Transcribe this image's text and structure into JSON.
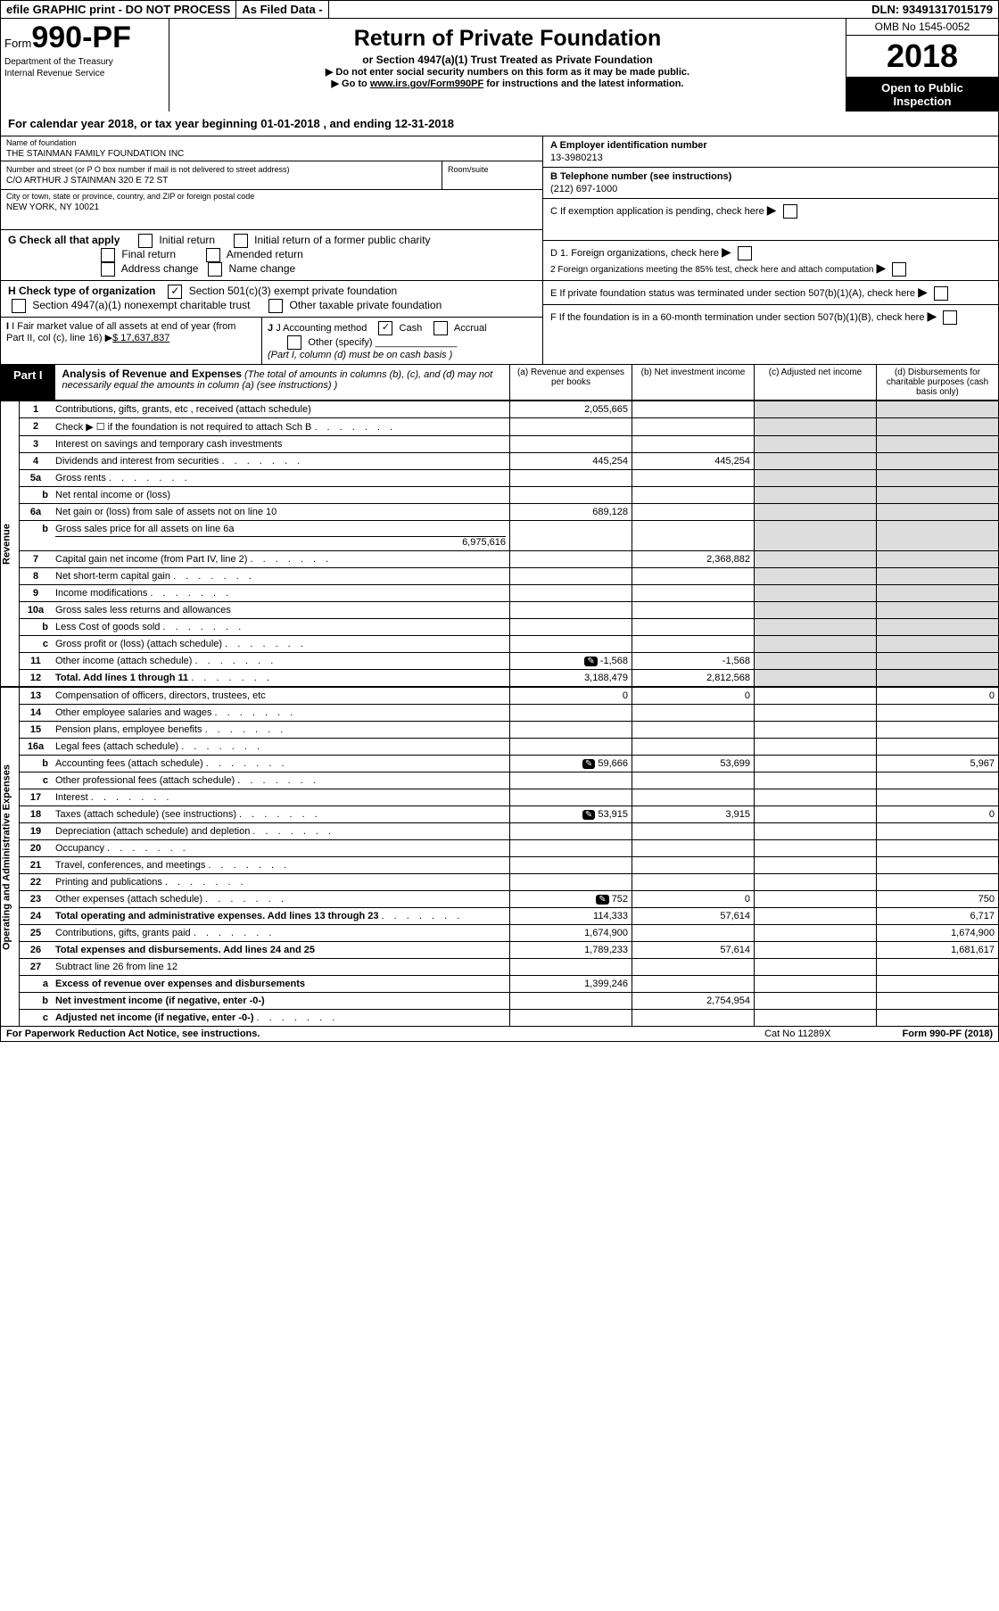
{
  "top_bar": {
    "efile": "efile GRAPHIC print - DO NOT PROCESS",
    "asfiled": "As Filed Data -",
    "dln": "DLN: 93491317015179"
  },
  "form": {
    "prefix": "Form",
    "number": "990-PF",
    "dept1": "Department of the Treasury",
    "dept2": "Internal Revenue Service"
  },
  "title": {
    "main": "Return of Private Foundation",
    "sub": "or Section 4947(a)(1) Trust Treated as Private Foundation",
    "instr1": "▶ Do not enter social security numbers on this form as it may be made public.",
    "instr2_pre": "▶ Go to ",
    "instr2_link": "www.irs.gov/Form990PF",
    "instr2_post": " for instructions and the latest information."
  },
  "year_box": {
    "omb": "OMB No  1545-0052",
    "year": "2018",
    "open1": "Open to Public",
    "open2": "Inspection"
  },
  "cal_year": "For calendar year 2018, or tax year beginning 01-01-2018              , and ending 12-31-2018",
  "name_label": "Name of foundation",
  "name_value": "THE STAINMAN FAMILY FOUNDATION INC",
  "addr_label": "Number and street (or P O  box number if mail is not delivered to street address)",
  "addr_value": "C/O ARTHUR J STAINMAN 320 E 72 ST",
  "room_label": "Room/suite",
  "city_label": "City or town, state or province, country, and ZIP or foreign postal code",
  "city_value": "NEW YORK, NY  10021",
  "ein_label": "A Employer identification number",
  "ein_value": "13-3980213",
  "phone_label": "B Telephone number (see instructions)",
  "phone_value": "(212) 697-1000",
  "c_label": "C  If exemption application is pending, check here",
  "d1_label": "D 1. Foreign organizations, check here",
  "d2_label": "2  Foreign organizations meeting the 85% test, check here and attach computation",
  "e_label": "E  If private foundation status was terminated under section 507(b)(1)(A), check here",
  "f_label": "F  If the foundation is in a 60-month termination under section 507(b)(1)(B), check here",
  "g_label": "G Check all that apply",
  "g_opts": [
    "Initial return",
    "Initial return of a former public charity",
    "Final return",
    "Amended return",
    "Address change",
    "Name change"
  ],
  "h_label": "H Check type of organization",
  "h_opt1": "Section 501(c)(3) exempt private foundation",
  "h_opt2": "Section 4947(a)(1) nonexempt charitable trust",
  "h_opt3": "Other taxable private foundation",
  "i_label": "I Fair market value of all assets at end of year (from Part II, col  (c), line 16)",
  "i_value": "$  17,637,837",
  "j_label": "J Accounting method",
  "j_cash": "Cash",
  "j_accrual": "Accrual",
  "j_other": "Other (specify)",
  "j_note": "(Part I, column (d) must be on cash basis )",
  "part1_label": "Part I",
  "part1_title": "Analysis of Revenue and Expenses",
  "part1_sub": " (The total of amounts in columns (b), (c), and (d) may not necessarily equal the amounts in column (a) (see instructions) )",
  "col_a": "(a)  Revenue and expenses per books",
  "col_b": "(b)  Net investment income",
  "col_c": "(c)  Adjusted net income",
  "col_d": "(d)  Disbursements for charitable purposes (cash basis only)",
  "side_rev": "Revenue",
  "side_exp": "Operating and Administrative Expenses",
  "rows": [
    {
      "n": "1",
      "desc": "Contributions, gifts, grants, etc , received (attach schedule)",
      "a": "2,055,665"
    },
    {
      "n": "2",
      "desc": "Check ▶ ☐ if the foundation is not required to attach Sch  B",
      "dots": true
    },
    {
      "n": "3",
      "desc": "Interest on savings and temporary cash investments"
    },
    {
      "n": "4",
      "desc": "Dividends and interest from securities",
      "a": "445,254",
      "b": "445,254",
      "dots": true
    },
    {
      "n": "5a",
      "desc": "Gross rents",
      "dots": true
    },
    {
      "n": "b",
      "sub": true,
      "desc": "Net rental income or (loss)"
    },
    {
      "n": "6a",
      "desc": "Net gain or (loss) from sale of assets not on line 10",
      "a": "689,128"
    },
    {
      "n": "b",
      "sub": true,
      "desc": "Gross sales price for all assets on line 6a",
      "inline": "6,975,616"
    },
    {
      "n": "7",
      "desc": "Capital gain net income (from Part IV, line 2)",
      "b": "2,368,882",
      "dots": true
    },
    {
      "n": "8",
      "desc": "Net short-term capital gain",
      "dots": true
    },
    {
      "n": "9",
      "desc": "Income modifications",
      "dots": true
    },
    {
      "n": "10a",
      "desc": "Gross sales less returns and allowances"
    },
    {
      "n": "b",
      "sub": true,
      "desc": "Less  Cost of goods sold",
      "dots": true
    },
    {
      "n": "c",
      "sub": true,
      "desc": "Gross profit or (loss) (attach schedule)",
      "dots": true
    },
    {
      "n": "11",
      "desc": "Other income (attach schedule)",
      "a": "-1,568",
      "b": "-1,568",
      "icon": true,
      "dots": true
    },
    {
      "n": "12",
      "desc": "Total. Add lines 1 through 11",
      "a": "3,188,479",
      "b": "2,812,568",
      "bold": true,
      "dots": true
    }
  ],
  "exp_rows": [
    {
      "n": "13",
      "desc": "Compensation of officers, directors, trustees, etc",
      "a": "0",
      "b": "0",
      "d": "0"
    },
    {
      "n": "14",
      "desc": "Other employee salaries and wages",
      "dots": true
    },
    {
      "n": "15",
      "desc": "Pension plans, employee benefits",
      "dots": true
    },
    {
      "n": "16a",
      "desc": "Legal fees (attach schedule)",
      "dots": true
    },
    {
      "n": "b",
      "sub": true,
      "desc": "Accounting fees (attach schedule)",
      "a": "59,666",
      "b": "53,699",
      "d": "5,967",
      "icon": true,
      "dots": true
    },
    {
      "n": "c",
      "sub": true,
      "desc": "Other professional fees (attach schedule)",
      "dots": true
    },
    {
      "n": "17",
      "desc": "Interest",
      "dots": true
    },
    {
      "n": "18",
      "desc": "Taxes (attach schedule) (see instructions)",
      "a": "53,915",
      "b": "3,915",
      "d": "0",
      "icon": true,
      "dots": true
    },
    {
      "n": "19",
      "desc": "Depreciation (attach schedule) and depletion",
      "dots": true
    },
    {
      "n": "20",
      "desc": "Occupancy",
      "dots": true
    },
    {
      "n": "21",
      "desc": "Travel, conferences, and meetings",
      "dots": true
    },
    {
      "n": "22",
      "desc": "Printing and publications",
      "dots": true
    },
    {
      "n": "23",
      "desc": "Other expenses (attach schedule)",
      "a": "752",
      "b": "0",
      "d": "750",
      "icon": true,
      "dots": true
    },
    {
      "n": "24",
      "desc": "Total operating and administrative expenses. Add lines 13 through 23",
      "a": "114,333",
      "b": "57,614",
      "d": "6,717",
      "bold": true,
      "dots": true
    },
    {
      "n": "25",
      "desc": "Contributions, gifts, grants paid",
      "a": "1,674,900",
      "d": "1,674,900",
      "dots": true
    },
    {
      "n": "26",
      "desc": "Total expenses and disbursements. Add lines 24 and 25",
      "a": "1,789,233",
      "b": "57,614",
      "d": "1,681,617",
      "bold": true
    },
    {
      "n": "27",
      "desc": "Subtract line 26 from line 12"
    },
    {
      "n": "a",
      "sub": true,
      "desc": "Excess of revenue over expenses and disbursements",
      "a": "1,399,246",
      "bold": true
    },
    {
      "n": "b",
      "sub": true,
      "desc": "Net investment income (if negative, enter -0-)",
      "b": "2,754,954",
      "bold": true
    },
    {
      "n": "c",
      "sub": true,
      "desc": "Adjusted net income (if negative, enter -0-)",
      "bold": true,
      "dots": true
    }
  ],
  "footer": {
    "left": "For Paperwork Reduction Act Notice, see instructions.",
    "mid": "Cat  No  11289X",
    "right": "Form 990-PF (2018)"
  }
}
